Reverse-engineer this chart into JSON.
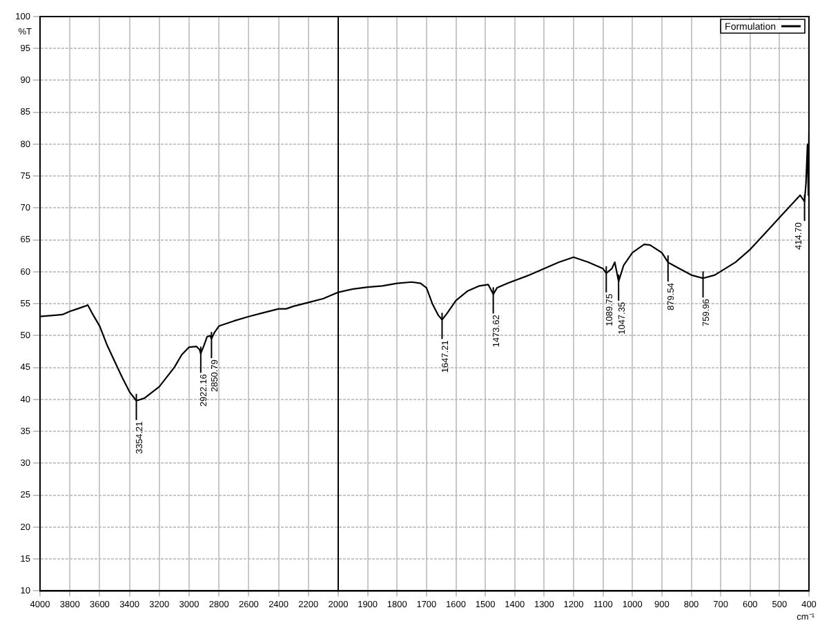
{
  "chart_data": [
    {
      "type": "line",
      "ylabel": "%T",
      "xlim": [
        4000,
        2000
      ],
      "xticks": [
        4000,
        3800,
        3600,
        3400,
        3200,
        3000,
        2800,
        2600,
        2400,
        2200,
        2000
      ],
      "ylim": [
        10,
        100
      ],
      "yticks": [
        10,
        15,
        20,
        25,
        30,
        35,
        40,
        45,
        50,
        55,
        60,
        65,
        70,
        75,
        80,
        85,
        90,
        95,
        100
      ],
      "grid": true,
      "marker": "none",
      "line_style": "solid",
      "series": [
        {
          "color": "#000000",
          "x": [
            4000,
            3900,
            3850,
            3800,
            3750,
            3700,
            3680,
            3650,
            3600,
            3550,
            3500,
            3450,
            3400,
            3354,
            3300,
            3200,
            3100,
            3050,
            3000,
            2950,
            2930,
            2922,
            2900,
            2880,
            2860,
            2850,
            2830,
            2800,
            2700,
            2600,
            2500,
            2400,
            2350,
            2300,
            2200,
            2100,
            2000
          ],
          "values": [
            53,
            53.2,
            53.3,
            53.8,
            54.2,
            54.6,
            54.8,
            53.5,
            51.5,
            48.5,
            46,
            43.5,
            41.2,
            39.8,
            40.2,
            42,
            45,
            47,
            48.2,
            48.3,
            47.8,
            47.2,
            48.5,
            49.8,
            50,
            49.5,
            50.5,
            51.5,
            52.3,
            53,
            53.6,
            54.2,
            54.2,
            54.6,
            55.2,
            55.8,
            56.8
          ]
        }
      ],
      "annotations": [
        {
          "text": "3354.21",
          "x": 3354,
          "y": 39.8
        },
        {
          "text": "2922.16",
          "x": 2922,
          "y": 47.2
        },
        {
          "text": "2850.79",
          "x": 2850,
          "y": 49.5
        }
      ]
    },
    {
      "type": "line",
      "xlabel": "cm⁻¹",
      "xlim": [
        2000,
        400
      ],
      "xticks": [
        1900,
        1800,
        1700,
        1600,
        1500,
        1400,
        1300,
        1200,
        1100,
        1000,
        900,
        800,
        700,
        600,
        500,
        400
      ],
      "ylim": [
        10,
        100
      ],
      "yticks": [
        10,
        15,
        20,
        25,
        30,
        35,
        40,
        45,
        50,
        55,
        60,
        65,
        70,
        75,
        80,
        85,
        90,
        95,
        100
      ],
      "tick_labels": "x",
      "grid": true,
      "legend": "top right",
      "marker": "none",
      "line_style": "solid",
      "series": [
        {
          "name": "Formulation",
          "color": "#000000",
          "x": [
            2000,
            1950,
            1900,
            1850,
            1800,
            1750,
            1720,
            1700,
            1680,
            1660,
            1647,
            1630,
            1600,
            1560,
            1520,
            1490,
            1473,
            1460,
            1420,
            1350,
            1300,
            1250,
            1200,
            1150,
            1100,
            1089,
            1070,
            1060,
            1047,
            1030,
            1000,
            960,
            940,
            900,
            879,
            860,
            800,
            760,
            720,
            650,
            600,
            550,
            500,
            460,
            430,
            415,
            410,
            405,
            402,
            400
          ],
          "values": [
            56.8,
            57.3,
            57.6,
            57.8,
            58.2,
            58.4,
            58.2,
            57.5,
            55,
            53.2,
            52.5,
            53.5,
            55.5,
            57,
            57.8,
            58,
            56.5,
            57.5,
            58.3,
            59.5,
            60.5,
            61.5,
            62.3,
            61.5,
            60.5,
            59.8,
            60.5,
            61.5,
            58.5,
            61,
            63,
            64.3,
            64.2,
            63,
            61.5,
            61,
            59.5,
            59,
            59.5,
            61.5,
            63.5,
            66,
            68.5,
            70.5,
            72,
            71,
            74,
            80,
            72,
            82
          ]
        }
      ],
      "annotations": [
        {
          "text": "1647.21",
          "x": 1647,
          "y": 52.5
        },
        {
          "text": "1473.62",
          "x": 1473,
          "y": 56.5
        },
        {
          "text": "1089.75",
          "x": 1089,
          "y": 59.8
        },
        {
          "text": "1047.35",
          "x": 1047,
          "y": 58.5
        },
        {
          "text": "879.54",
          "x": 879,
          "y": 61.5
        },
        {
          "text": "759.96",
          "x": 760,
          "y": 59
        },
        {
          "text": "414.70",
          "x": 415,
          "y": 71
        }
      ]
    }
  ]
}
